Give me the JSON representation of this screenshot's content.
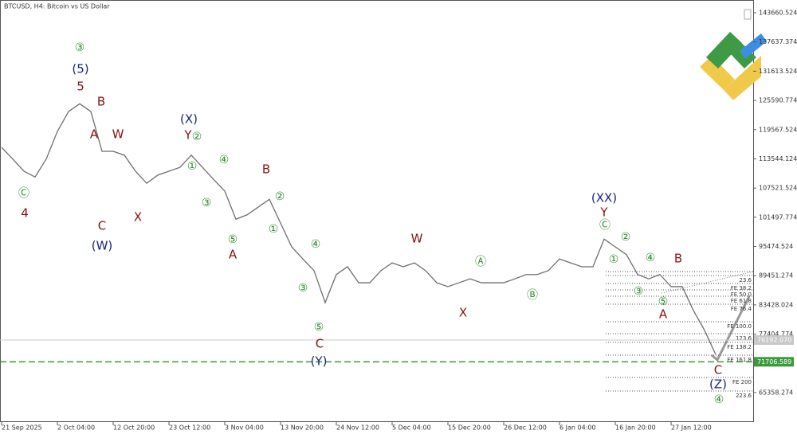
{
  "chart_data": {
    "type": "line",
    "title": "BTCUSD, H4:  Bitcoin vs US Dollar",
    "categories": [
      "21 Sep 2025",
      null,
      null,
      null,
      null,
      "2 Oct 04:00",
      null,
      null,
      null,
      null,
      "12 Oct 20:00",
      null,
      null,
      null,
      null,
      "23 Oct 12:00",
      null,
      null,
      null,
      null,
      "3 Nov 04:00",
      null,
      null,
      null,
      null,
      "13 Nov 20:00",
      null,
      null,
      null,
      null,
      "24 Nov 12:00",
      null,
      null,
      null,
      null,
      "5 Dec 04:00",
      null,
      null,
      null,
      null,
      "15 Dec 20:00",
      null,
      null,
      null,
      null,
      "26 Dec 12:00",
      null,
      null,
      null,
      null,
      "6 Jan 04:00",
      null,
      null,
      null,
      null,
      "16 Jan 20:00",
      null,
      null,
      null,
      null,
      "27 Jan 12:00",
      null,
      null,
      null,
      null
    ],
    "series": [
      {
        "name": "BTCUSD",
        "color": "#6e6e6e",
        "values": [
          115900,
          113500,
          111000,
          109800,
          113500,
          119200,
          123300,
          124900,
          123300,
          115100,
          115100,
          114300,
          111000,
          108500,
          110200,
          111000,
          111800,
          114300,
          111800,
          109300,
          106900,
          101100,
          102000,
          103600,
          105200,
          100300,
          95400,
          92900,
          90500,
          83900,
          89700,
          91300,
          88000,
          88000,
          90500,
          92100,
          91300,
          92100,
          90500,
          88000,
          87200,
          88000,
          88800,
          88000,
          88000,
          88000,
          88800,
          89700,
          89700,
          90500,
          92900,
          92100,
          91300,
          91300,
          97000,
          95400,
          93800,
          89700,
          88800,
          89700,
          87200,
          87200,
          82300,
          78200,
          73200
        ]
      }
    ],
    "ylim": [
      59284,
      146287
    ],
    "yticks": [
      143660.524,
      137637.374,
      131613.524,
      125590.774,
      119567.524,
      113544.124,
      107521.524,
      101497.774,
      95474.524,
      89451.274,
      83428.024,
      77404.774,
      65358.274
    ],
    "price_lines": [
      {
        "value": 76192.07,
        "label": "76192.070",
        "color": "#c8c8c8"
      },
      {
        "value": 71706.589,
        "label": "71706.589",
        "color": "#3c9a3c"
      }
    ],
    "annotations": [
      "③",
      "(5)",
      "5",
      "B",
      "A",
      "W",
      "Ⓒ",
      "4",
      "C",
      "(W)",
      "X",
      "(X)",
      "Y",
      "②",
      "①",
      "④",
      "③",
      "B",
      "②",
      "①",
      "⑤",
      "A",
      "④",
      "③",
      "⑤",
      "C",
      "(Y)",
      "W",
      "Ⓐ",
      "Ⓑ",
      "X",
      "(XX)",
      "Y",
      "Ⓒ",
      "②",
      "①",
      "④",
      "B",
      "③",
      "⑤",
      "A",
      "C",
      "(Z)",
      "④"
    ],
    "fib_levels": [
      "23.6",
      "FE 38.2",
      "FE 50.0",
      "FE 61.8",
      "FE 76.4",
      "FE 100.0",
      "123.6",
      "FE 138.2",
      "FE 161.8",
      "FE 200",
      "223.6"
    ]
  }
}
